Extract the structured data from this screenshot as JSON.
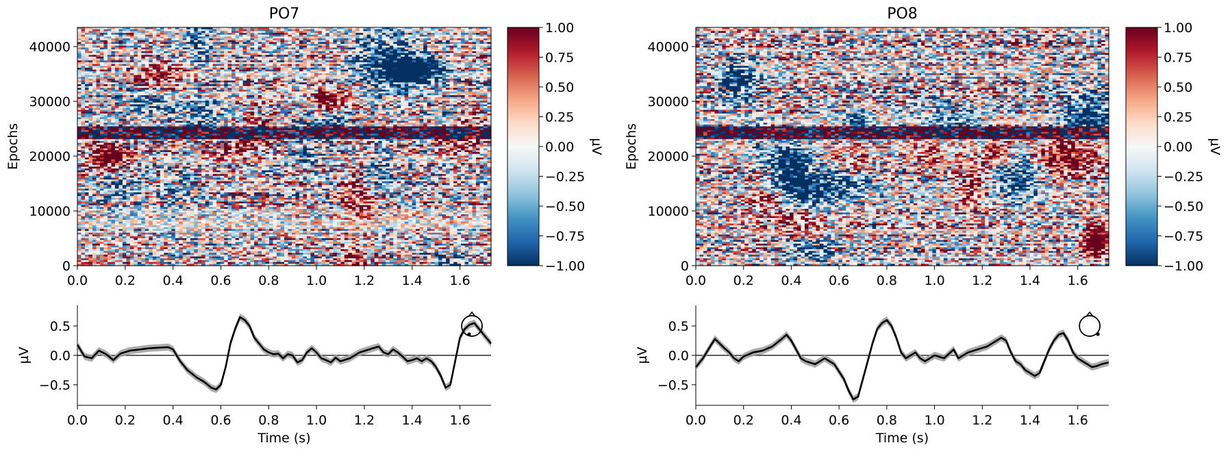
{
  "chart_data": [
    {
      "type": "heatmap",
      "title": "PO7",
      "ylabel": "Epochs",
      "x_range": [
        0,
        1.73
      ],
      "y_range": [
        0,
        43500
      ],
      "x_ticks": [
        "0.0",
        "0.2",
        "0.4",
        "0.6",
        "0.8",
        "1.0",
        "1.2",
        "1.4",
        "1.6"
      ],
      "y_ticks": [
        "0",
        "10000",
        "20000",
        "30000",
        "40000"
      ],
      "colorbar": {
        "label": "µV",
        "range": [
          -1.0,
          1.0
        ],
        "ticks": [
          "1.00",
          "0.75",
          "0.50",
          "0.25",
          "0.00",
          "−0.25",
          "−0.50",
          "−0.75",
          "−1.00"
        ],
        "colors": [
          "#053061",
          "#2166ac",
          "#4393c3",
          "#92c5de",
          "#d1e5f0",
          "#f7f7f7",
          "#fddbc7",
          "#f4a582",
          "#d6604d",
          "#b2182b",
          "#67001f"
        ]
      },
      "seed": 7
    },
    {
      "type": "line",
      "xlabel": "Time (s)",
      "ylabel": "µV",
      "x_range": [
        0,
        1.73
      ],
      "ylim": [
        -0.85,
        0.85
      ],
      "x_ticks": [
        "0.0",
        "0.2",
        "0.4",
        "0.6",
        "0.8",
        "1.0",
        "1.2",
        "1.4",
        "1.6"
      ],
      "y_ticks": [
        "0.5",
        "0.0",
        "−0.5"
      ],
      "x": [
        0.0,
        0.03,
        0.06,
        0.09,
        0.12,
        0.15,
        0.18,
        0.22,
        0.26,
        0.3,
        0.34,
        0.38,
        0.4,
        0.43,
        0.46,
        0.5,
        0.53,
        0.56,
        0.58,
        0.6,
        0.62,
        0.64,
        0.66,
        0.68,
        0.7,
        0.72,
        0.74,
        0.76,
        0.78,
        0.8,
        0.82,
        0.84,
        0.86,
        0.88,
        0.9,
        0.92,
        0.94,
        0.96,
        0.98,
        1.0,
        1.02,
        1.04,
        1.06,
        1.08,
        1.1,
        1.14,
        1.18,
        1.22,
        1.26,
        1.28,
        1.3,
        1.32,
        1.34,
        1.36,
        1.38,
        1.4,
        1.42,
        1.44,
        1.46,
        1.48,
        1.5,
        1.52,
        1.54,
        1.56,
        1.58,
        1.6,
        1.62,
        1.64,
        1.66,
        1.68,
        1.7,
        1.73
      ],
      "values": [
        0.18,
        -0.02,
        -0.05,
        0.08,
        0.02,
        -0.08,
        0.03,
        0.08,
        0.1,
        0.12,
        0.13,
        0.14,
        0.1,
        -0.1,
        -0.25,
        -0.38,
        -0.45,
        -0.55,
        -0.58,
        -0.5,
        -0.2,
        0.2,
        0.45,
        0.65,
        0.6,
        0.5,
        0.3,
        0.2,
        0.1,
        0.05,
        0.02,
        0.03,
        -0.05,
        0.02,
        0.0,
        -0.12,
        -0.08,
        0.05,
        0.12,
        0.05,
        -0.05,
        -0.08,
        -0.12,
        -0.04,
        -0.1,
        -0.05,
        0.05,
        0.1,
        0.15,
        0.05,
        0.02,
        0.1,
        0.05,
        -0.02,
        -0.1,
        -0.08,
        -0.05,
        -0.1,
        -0.05,
        -0.1,
        -0.2,
        -0.35,
        -0.55,
        -0.5,
        -0.1,
        0.3,
        0.45,
        0.52,
        0.55,
        0.45,
        0.35,
        0.2
      ],
      "band": 0.06,
      "topomap": true
    },
    {
      "type": "heatmap",
      "title": "PO8",
      "ylabel": "Epochs",
      "x_range": [
        0,
        1.73
      ],
      "y_range": [
        0,
        43500
      ],
      "x_ticks": [
        "0.0",
        "0.2",
        "0.4",
        "0.6",
        "0.8",
        "1.0",
        "1.2",
        "1.4",
        "1.6"
      ],
      "y_ticks": [
        "0",
        "10000",
        "20000",
        "30000",
        "40000"
      ],
      "colorbar": {
        "label": "µV",
        "range": [
          -1.0,
          1.0
        ],
        "ticks": [
          "1.00",
          "0.75",
          "0.50",
          "0.25",
          "0.00",
          "−0.25",
          "−0.50",
          "−0.75",
          "−1.00"
        ],
        "colors": [
          "#053061",
          "#2166ac",
          "#4393c3",
          "#92c5de",
          "#d1e5f0",
          "#f7f7f7",
          "#fddbc7",
          "#f4a582",
          "#d6604d",
          "#b2182b",
          "#67001f"
        ]
      },
      "seed": 8
    },
    {
      "type": "line",
      "xlabel": "Time (s)",
      "ylabel": "µV",
      "x_range": [
        0,
        1.73
      ],
      "ylim": [
        -0.85,
        0.85
      ],
      "x_ticks": [
        "0.0",
        "0.2",
        "0.4",
        "0.6",
        "0.8",
        "1.0",
        "1.2",
        "1.4",
        "1.6"
      ],
      "y_ticks": [
        "0.5",
        "0.0",
        "−0.5"
      ],
      "x": [
        0.0,
        0.03,
        0.06,
        0.08,
        0.1,
        0.12,
        0.14,
        0.16,
        0.18,
        0.2,
        0.24,
        0.28,
        0.32,
        0.36,
        0.38,
        0.4,
        0.42,
        0.44,
        0.46,
        0.5,
        0.54,
        0.58,
        0.62,
        0.64,
        0.66,
        0.68,
        0.7,
        0.72,
        0.74,
        0.76,
        0.78,
        0.8,
        0.82,
        0.84,
        0.86,
        0.88,
        0.9,
        0.92,
        0.94,
        0.96,
        0.98,
        1.0,
        1.04,
        1.08,
        1.1,
        1.14,
        1.18,
        1.22,
        1.26,
        1.28,
        1.3,
        1.32,
        1.34,
        1.36,
        1.38,
        1.4,
        1.42,
        1.44,
        1.46,
        1.48,
        1.5,
        1.52,
        1.54,
        1.56,
        1.58,
        1.6,
        1.62,
        1.64,
        1.66,
        1.68,
        1.7,
        1.73
      ],
      "values": [
        -0.2,
        -0.05,
        0.15,
        0.28,
        0.2,
        0.12,
        0.05,
        -0.05,
        -0.1,
        -0.02,
        0.05,
        0.08,
        0.15,
        0.28,
        0.35,
        0.25,
        0.1,
        -0.05,
        -0.1,
        -0.15,
        -0.05,
        -0.15,
        -0.4,
        -0.6,
        -0.75,
        -0.7,
        -0.4,
        -0.1,
        0.2,
        0.45,
        0.55,
        0.6,
        0.5,
        0.3,
        0.05,
        -0.05,
        0.0,
        0.05,
        -0.05,
        -0.1,
        -0.05,
        0.0,
        -0.05,
        0.1,
        -0.05,
        0.05,
        0.1,
        0.15,
        0.25,
        0.3,
        0.25,
        0.05,
        -0.1,
        -0.15,
        -0.25,
        -0.3,
        -0.35,
        -0.3,
        -0.1,
        0.1,
        0.25,
        0.35,
        0.38,
        0.25,
        0.05,
        -0.05,
        -0.1,
        -0.15,
        -0.2,
        -0.18,
        -0.15,
        -0.12
      ],
      "band": 0.06,
      "topomap": true
    }
  ]
}
